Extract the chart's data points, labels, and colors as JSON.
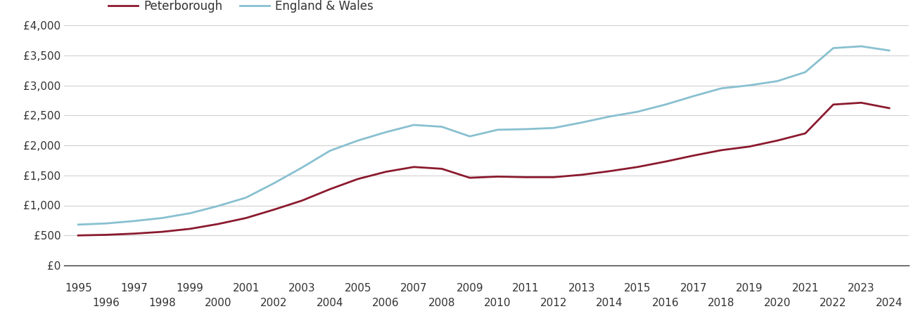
{
  "peterborough_years": [
    1995,
    1996,
    1997,
    1998,
    1999,
    2000,
    2001,
    2002,
    2003,
    2004,
    2005,
    2006,
    2007,
    2008,
    2009,
    2010,
    2011,
    2012,
    2013,
    2014,
    2015,
    2016,
    2017,
    2018,
    2019,
    2020,
    2021,
    2022,
    2023,
    2024
  ],
  "peterborough_values": [
    500,
    510,
    530,
    560,
    610,
    690,
    790,
    930,
    1080,
    1270,
    1440,
    1560,
    1640,
    1610,
    1460,
    1480,
    1470,
    1470,
    1510,
    1570,
    1640,
    1730,
    1830,
    1920,
    1980,
    2080,
    2200,
    2680,
    2710,
    2620
  ],
  "england_years": [
    1995,
    1996,
    1997,
    1998,
    1999,
    2000,
    2001,
    2002,
    2003,
    2004,
    2005,
    2006,
    2007,
    2008,
    2009,
    2010,
    2011,
    2012,
    2013,
    2014,
    2015,
    2016,
    2017,
    2018,
    2019,
    2020,
    2021,
    2022,
    2023,
    2024
  ],
  "england_values": [
    680,
    700,
    740,
    790,
    870,
    990,
    1130,
    1370,
    1630,
    1910,
    2080,
    2220,
    2340,
    2310,
    2150,
    2260,
    2270,
    2290,
    2380,
    2480,
    2560,
    2680,
    2820,
    2950,
    3000,
    3070,
    3220,
    3620,
    3650,
    3580
  ],
  "peterborough_color": "#8B1A2E",
  "england_color": "#88C0D0",
  "peterborough_label": "Peterborough",
  "england_label": "England & Wales",
  "ylim": [
    0,
    4000
  ],
  "yticks": [
    0,
    500,
    1000,
    1500,
    2000,
    2500,
    3000,
    3500,
    4000
  ],
  "ytick_labels": [
    "£0",
    "£500",
    "£1,000",
    "£1,500",
    "£2,000",
    "£2,500",
    "£3,000",
    "£3,500",
    "£4,000"
  ],
  "xticks_odd": [
    1995,
    1997,
    1999,
    2001,
    2003,
    2005,
    2007,
    2009,
    2011,
    2013,
    2015,
    2017,
    2019,
    2021,
    2023
  ],
  "xticks_even": [
    1996,
    1998,
    2000,
    2002,
    2004,
    2006,
    2008,
    2010,
    2012,
    2014,
    2016,
    2018,
    2020,
    2022,
    2024
  ],
  "xmin": 1994.5,
  "xmax": 2024.7,
  "background_color": "#ffffff",
  "grid_color": "#d0d0d0",
  "line_width": 2.0,
  "tick_fontsize": 11,
  "legend_fontsize": 12
}
